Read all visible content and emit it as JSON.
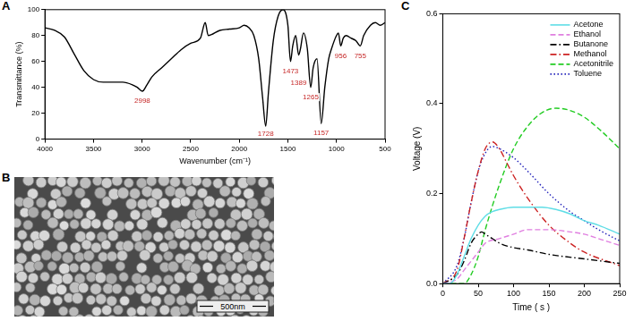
{
  "chart_data": [
    {
      "panel": "A",
      "type": "line",
      "x_label": "Wavenumber (cm⁻¹)",
      "y_label": "Transmittance (%)",
      "xlim": [
        4000,
        500
      ],
      "xticks": [
        4000,
        3500,
        3000,
        2500,
        2000,
        1500,
        1000,
        500
      ],
      "ylim": [
        0,
        100
      ],
      "yticks": [
        0,
        20,
        40,
        60,
        80,
        100
      ],
      "grid": false,
      "series": [
        {
          "color": "#000000",
          "line_style": "solid",
          "x": [
            4000,
            3900,
            3800,
            3700,
            3600,
            3500,
            3400,
            3300,
            3200,
            3100,
            3050,
            2998,
            2950,
            2900,
            2800,
            2700,
            2600,
            2500,
            2400,
            2350,
            2320,
            2200,
            2100,
            2000,
            1950,
            1900,
            1850,
            1800,
            1760,
            1728,
            1700,
            1650,
            1600,
            1550,
            1500,
            1473,
            1450,
            1420,
            1389,
            1370,
            1340,
            1300,
            1265,
            1240,
            1200,
            1157,
            1120,
            1080,
            1050,
            1000,
            980,
            956,
            930,
            900,
            850,
            800,
            755,
            720,
            650,
            600,
            550,
            500
          ],
          "values": [
            86,
            84,
            79,
            66,
            53,
            46,
            44,
            44,
            44,
            42,
            40,
            37,
            42,
            48,
            55,
            62,
            69,
            74,
            78,
            90,
            80,
            84,
            85,
            86,
            88,
            86,
            80,
            62,
            32,
            10,
            36,
            76,
            95,
            100,
            88,
            60,
            72,
            80,
            65,
            70,
            82,
            70,
            40,
            55,
            62,
            12,
            40,
            62,
            70,
            80,
            82,
            72,
            78,
            80,
            78,
            76,
            72,
            80,
            88,
            90,
            88,
            90
          ]
        }
      ],
      "annotations": [
        {
          "x": 2998,
          "text": "2998"
        },
        {
          "x": 1728,
          "text": "1728"
        },
        {
          "x": 1473,
          "text": "1473"
        },
        {
          "x": 1389,
          "text": "1389"
        },
        {
          "x": 1265,
          "text": "1265"
        },
        {
          "x": 1157,
          "text": "1157"
        },
        {
          "x": 956,
          "text": "956"
        },
        {
          "x": 755,
          "text": "755"
        }
      ]
    },
    {
      "panel": "C",
      "type": "line",
      "x_label": "Time ( s )",
      "y_label": "Voltage (V)",
      "xlim": [
        0,
        250
      ],
      "xticks": [
        0,
        50,
        100,
        150,
        200,
        250
      ],
      "ylim": [
        0,
        0.6
      ],
      "yticks": [
        {
          "value": 0,
          "label": "0.0"
        },
        0.2,
        0.4,
        0.6
      ],
      "grid": false,
      "legend": "upper right",
      "series": [
        {
          "name": "Acetone",
          "color": "#5fdde6",
          "line_style": "solid",
          "x": [
            0,
            10,
            20,
            30,
            40,
            50,
            60,
            70,
            80,
            100,
            120,
            140,
            160,
            180,
            200,
            220,
            250
          ],
          "values": [
            0,
            0,
            0.02,
            0.06,
            0.1,
            0.13,
            0.15,
            0.16,
            0.165,
            0.17,
            0.17,
            0.17,
            0.165,
            0.155,
            0.14,
            0.13,
            0.11
          ]
        },
        {
          "name": "Ethanol",
          "color": "#e07fe0",
          "line_style": "dashed",
          "x": [
            0,
            20,
            30,
            40,
            50,
            60,
            80,
            100,
            120,
            150,
            180,
            200,
            220,
            250
          ],
          "values": [
            0,
            0.01,
            0.03,
            0.05,
            0.07,
            0.09,
            0.1,
            0.11,
            0.12,
            0.12,
            0.115,
            0.11,
            0.1,
            0.085
          ]
        },
        {
          "name": "Butanone",
          "color": "#000000",
          "line_style": "dashdot",
          "x": [
            0,
            20,
            30,
            40,
            50,
            55,
            60,
            70,
            80,
            100,
            120,
            150,
            200,
            250
          ],
          "values": [
            0,
            0.02,
            0.05,
            0.09,
            0.11,
            0.115,
            0.11,
            0.1,
            0.09,
            0.08,
            0.075,
            0.065,
            0.055,
            0.045
          ]
        },
        {
          "name": "Methanol",
          "color": "#cc2222",
          "line_style": "dashdot",
          "x": [
            0,
            20,
            30,
            40,
            50,
            60,
            70,
            80,
            90,
            100,
            120,
            150,
            180,
            200,
            250
          ],
          "values": [
            0,
            0.03,
            0.1,
            0.18,
            0.25,
            0.3,
            0.315,
            0.3,
            0.27,
            0.24,
            0.19,
            0.13,
            0.09,
            0.07,
            0.04
          ]
        },
        {
          "name": "Acetonitrile",
          "color": "#22cc22",
          "line_style": "dashed",
          "x": [
            0,
            30,
            40,
            50,
            60,
            80,
            100,
            120,
            140,
            160,
            180,
            200,
            220,
            250
          ],
          "values": [
            0,
            0,
            0.02,
            0.06,
            0.12,
            0.22,
            0.3,
            0.35,
            0.38,
            0.39,
            0.385,
            0.37,
            0.345,
            0.3
          ]
        },
        {
          "name": "Toluene",
          "color": "#2222bb",
          "line_style": "dotted",
          "x": [
            0,
            20,
            30,
            40,
            50,
            60,
            70,
            80,
            100,
            120,
            150,
            180,
            200,
            220,
            250
          ],
          "values": [
            0,
            0.04,
            0.1,
            0.18,
            0.25,
            0.29,
            0.305,
            0.3,
            0.28,
            0.25,
            0.2,
            0.16,
            0.14,
            0.12,
            0.095
          ]
        }
      ]
    }
  ],
  "image": {
    "panel": "B",
    "scale_bar": "500nm"
  }
}
